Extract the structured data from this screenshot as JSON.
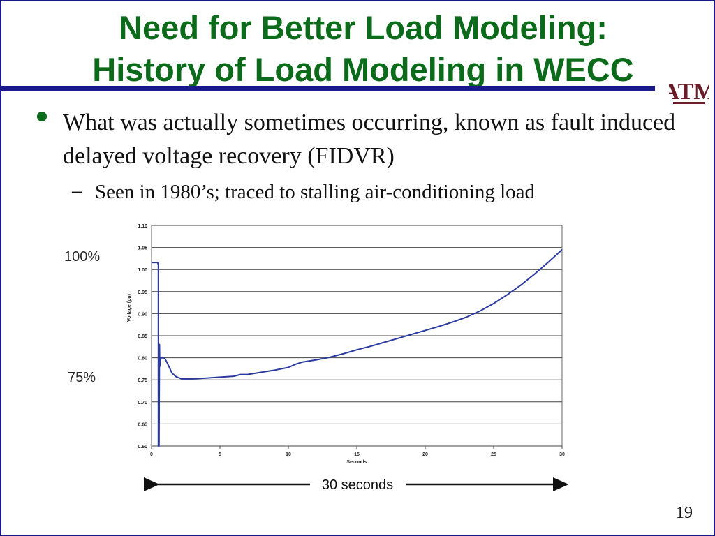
{
  "slide": {
    "title_line1": "Need for Better Load Modeling:",
    "title_line2": "History of Load Modeling in WECC",
    "bullet": "What was actually sometimes occurring, known as fault induced delayed voltage recovery (FIDVR)",
    "subbullet_dash": "–",
    "subbullet": "Seen in 1980’s; traced to stalling air-conditioning load",
    "page_number": "19",
    "logo_text": "ATM",
    "colors": {
      "title": "#0b6b1a",
      "rule": "#1a1a8c",
      "logo": "#6b1e2a",
      "curve": "#2b3a9e"
    }
  },
  "annotations": {
    "pct_100": "100%",
    "pct_75": "75%",
    "duration": "30 seconds"
  },
  "chart_data": {
    "type": "line",
    "title": "",
    "xlabel": "Seconds",
    "ylabel": "Voltage (pu)",
    "xlim": [
      0,
      30
    ],
    "ylim": [
      0.6,
      1.1
    ],
    "x_ticks": [
      "0",
      "5",
      "10",
      "15",
      "20",
      "25",
      "30"
    ],
    "y_ticks": [
      "0.60",
      "0.65",
      "0.70",
      "0.75",
      "0.80",
      "0.85",
      "0.90",
      "0.95",
      "1.00",
      "1.05",
      "1.10"
    ],
    "grid": "horizontal",
    "series": [
      {
        "name": "",
        "x": [
          0,
          0.4,
          0.45,
          0.5,
          0.5,
          0.55,
          0.58,
          0.6,
          0.63,
          0.7,
          0.8,
          1.0,
          1.2,
          1.5,
          1.8,
          2.2,
          2.6,
          3.0,
          4.0,
          5.0,
          6.0,
          6.5,
          7.0,
          8.0,
          9.0,
          10.0,
          10.5,
          11.0,
          12.0,
          13.0,
          14.0,
          15.0,
          16.0,
          17.0,
          18.0,
          19.0,
          20.0,
          21.0,
          22.0,
          23.0,
          24.0,
          25.0,
          26.0,
          27.0,
          28.0,
          29.0,
          30.0
        ],
        "y": [
          1.016,
          1.016,
          1.016,
          1.01,
          0.6,
          0.6,
          0.83,
          0.78,
          0.79,
          0.8,
          0.8,
          0.797,
          0.785,
          0.765,
          0.757,
          0.752,
          0.752,
          0.752,
          0.754,
          0.756,
          0.758,
          0.762,
          0.762,
          0.767,
          0.772,
          0.778,
          0.785,
          0.79,
          0.795,
          0.801,
          0.809,
          0.818,
          0.826,
          0.835,
          0.844,
          0.853,
          0.862,
          0.871,
          0.881,
          0.892,
          0.906,
          0.923,
          0.943,
          0.965,
          0.99,
          1.017,
          1.045
        ]
      }
    ]
  }
}
